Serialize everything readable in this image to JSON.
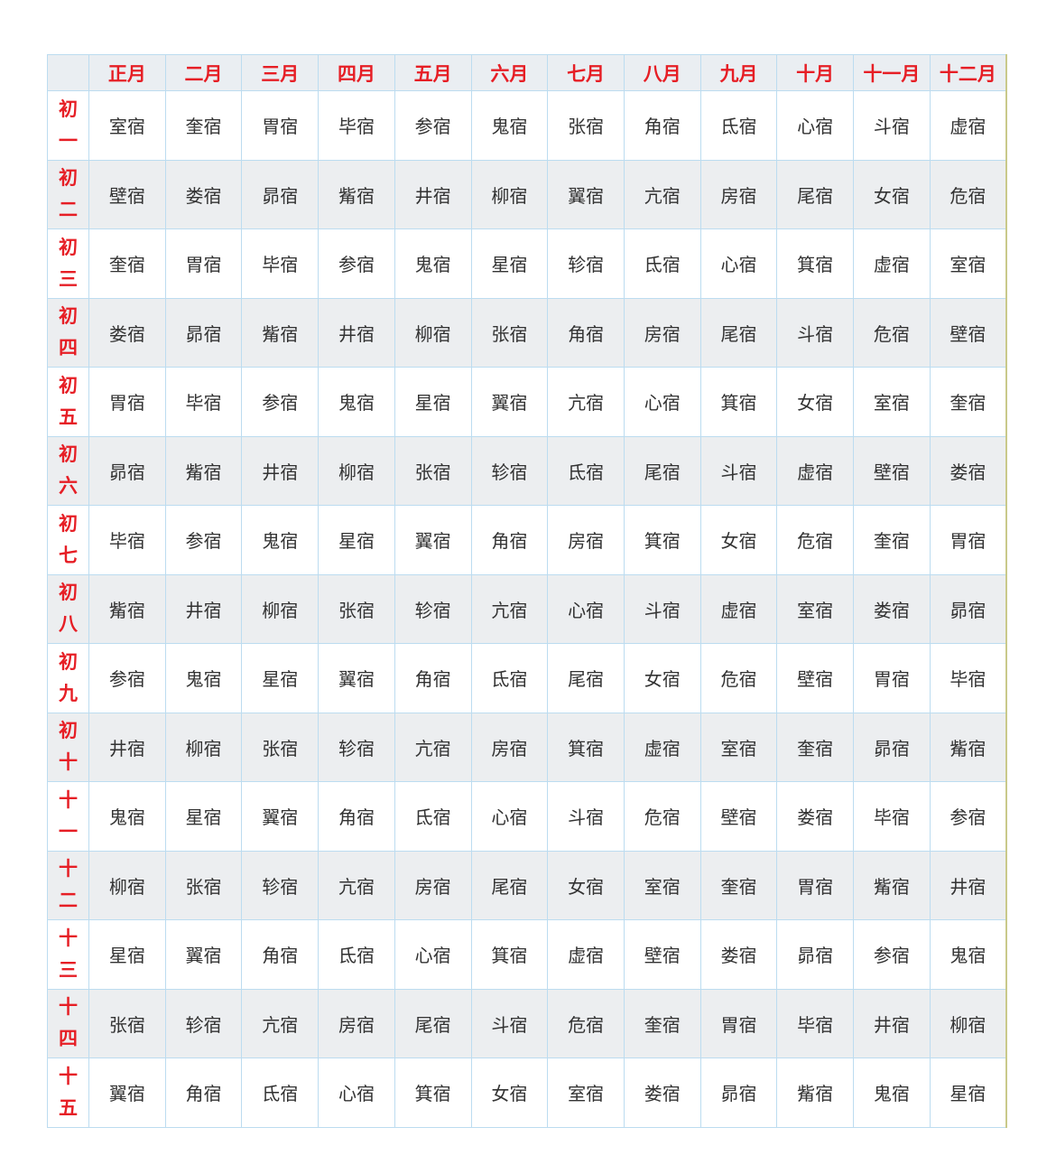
{
  "table": {
    "corner": "",
    "months": [
      "正月",
      "二月",
      "三月",
      "四月",
      "五月",
      "六月",
      "七月",
      "八月",
      "九月",
      "十月",
      "十一月",
      "十二月"
    ],
    "rows": [
      {
        "day": [
          "初",
          "一"
        ],
        "cells": [
          "室宿",
          "奎宿",
          "胃宿",
          "毕宿",
          "参宿",
          "鬼宿",
          "张宿",
          "角宿",
          "氐宿",
          "心宿",
          "斗宿",
          "虚宿"
        ]
      },
      {
        "day": [
          "初",
          "二"
        ],
        "cells": [
          "壁宿",
          "娄宿",
          "昴宿",
          "觜宿",
          "井宿",
          "柳宿",
          "翼宿",
          "亢宿",
          "房宿",
          "尾宿",
          "女宿",
          "危宿"
        ]
      },
      {
        "day": [
          "初",
          "三"
        ],
        "cells": [
          "奎宿",
          "胃宿",
          "毕宿",
          "参宿",
          "鬼宿",
          "星宿",
          "轸宿",
          "氐宿",
          "心宿",
          "箕宿",
          "虚宿",
          "室宿"
        ]
      },
      {
        "day": [
          "初",
          "四"
        ],
        "cells": [
          "娄宿",
          "昴宿",
          "觜宿",
          "井宿",
          "柳宿",
          "张宿",
          "角宿",
          "房宿",
          "尾宿",
          "斗宿",
          "危宿",
          "壁宿"
        ]
      },
      {
        "day": [
          "初",
          "五"
        ],
        "cells": [
          "胃宿",
          "毕宿",
          "参宿",
          "鬼宿",
          "星宿",
          "翼宿",
          "亢宿",
          "心宿",
          "箕宿",
          "女宿",
          "室宿",
          "奎宿"
        ]
      },
      {
        "day": [
          "初",
          "六"
        ],
        "cells": [
          "昴宿",
          "觜宿",
          "井宿",
          "柳宿",
          "张宿",
          "轸宿",
          "氐宿",
          "尾宿",
          "斗宿",
          "虚宿",
          "壁宿",
          "娄宿"
        ]
      },
      {
        "day": [
          "初",
          "七"
        ],
        "cells": [
          "毕宿",
          "参宿",
          "鬼宿",
          "星宿",
          "翼宿",
          "角宿",
          "房宿",
          "箕宿",
          "女宿",
          "危宿",
          "奎宿",
          "胃宿"
        ]
      },
      {
        "day": [
          "初",
          "八"
        ],
        "cells": [
          "觜宿",
          "井宿",
          "柳宿",
          "张宿",
          "轸宿",
          "亢宿",
          "心宿",
          "斗宿",
          "虚宿",
          "室宿",
          "娄宿",
          "昴宿"
        ]
      },
      {
        "day": [
          "初",
          "九"
        ],
        "cells": [
          "参宿",
          "鬼宿",
          "星宿",
          "翼宿",
          "角宿",
          "氐宿",
          "尾宿",
          "女宿",
          "危宿",
          "壁宿",
          "胃宿",
          "毕宿"
        ]
      },
      {
        "day": [
          "初",
          "十"
        ],
        "cells": [
          "井宿",
          "柳宿",
          "张宿",
          "轸宿",
          "亢宿",
          "房宿",
          "箕宿",
          "虚宿",
          "室宿",
          "奎宿",
          "昴宿",
          "觜宿"
        ]
      },
      {
        "day": [
          "十",
          "一"
        ],
        "cells": [
          "鬼宿",
          "星宿",
          "翼宿",
          "角宿",
          "氐宿",
          "心宿",
          "斗宿",
          "危宿",
          "壁宿",
          "娄宿",
          "毕宿",
          "参宿"
        ]
      },
      {
        "day": [
          "十",
          "二"
        ],
        "cells": [
          "柳宿",
          "张宿",
          "轸宿",
          "亢宿",
          "房宿",
          "尾宿",
          "女宿",
          "室宿",
          "奎宿",
          "胃宿",
          "觜宿",
          "井宿"
        ]
      },
      {
        "day": [
          "十",
          "三"
        ],
        "cells": [
          "星宿",
          "翼宿",
          "角宿",
          "氐宿",
          "心宿",
          "箕宿",
          "虚宿",
          "壁宿",
          "娄宿",
          "昴宿",
          "参宿",
          "鬼宿"
        ]
      },
      {
        "day": [
          "十",
          "四"
        ],
        "cells": [
          "张宿",
          "轸宿",
          "亢宿",
          "房宿",
          "尾宿",
          "斗宿",
          "危宿",
          "奎宿",
          "胃宿",
          "毕宿",
          "井宿",
          "柳宿"
        ]
      },
      {
        "day": [
          "十",
          "五"
        ],
        "cells": [
          "翼宿",
          "角宿",
          "氐宿",
          "心宿",
          "箕宿",
          "女宿",
          "室宿",
          "娄宿",
          "昴宿",
          "觜宿",
          "鬼宿",
          "星宿"
        ]
      }
    ]
  },
  "colors": {
    "header_text": "#e61e25",
    "border": "#bcdcf0",
    "alt_row": "#eceef0",
    "header_bg": "#eaeef2"
  }
}
